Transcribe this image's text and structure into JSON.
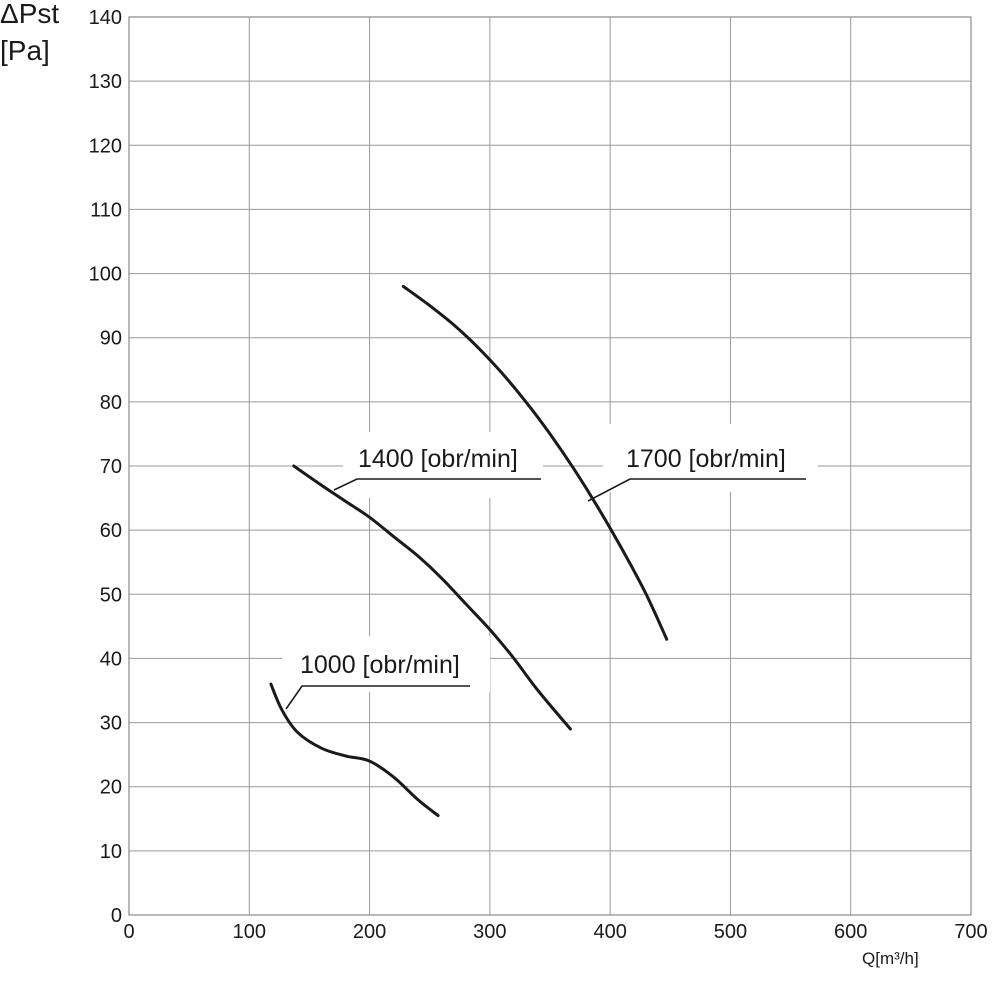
{
  "chart_data": {
    "type": "line",
    "title": "",
    "ylabel": [
      "ΔPst",
      "[Pa]"
    ],
    "xlabel": "Q[m³/h]",
    "xlim": [
      0,
      700
    ],
    "ylim": [
      0,
      140
    ],
    "x_ticks": [
      "0",
      "100",
      "200",
      "300",
      "400",
      "500",
      "600",
      "700"
    ],
    "y_ticks": [
      "0",
      "10",
      "20",
      "30",
      "40",
      "50",
      "60",
      "70",
      "80",
      "90",
      "100",
      "110",
      "120",
      "130",
      "140"
    ],
    "grid": true,
    "series": [
      {
        "name": "1000 [obr/min]",
        "x": [
          118,
          127,
          140,
          160,
          180,
          200,
          220,
          240,
          257
        ],
        "y": [
          36,
          32,
          28.5,
          26,
          24.8,
          24,
          21.5,
          18,
          15.5
        ]
      },
      {
        "name": "1400 [obr/min]",
        "x": [
          137,
          160,
          180,
          200,
          220,
          240,
          260,
          280,
          300,
          320,
          340,
          367
        ],
        "y": [
          70,
          67,
          64.5,
          62,
          59,
          56,
          52.5,
          48.5,
          44.5,
          40,
          35,
          29
        ]
      },
      {
        "name": "1700 [obr/min]",
        "x": [
          228,
          250,
          270,
          290,
          310,
          330,
          350,
          370,
          390,
          410,
          430,
          447
        ],
        "y": [
          98,
          95,
          92,
          88.5,
          84.5,
          80,
          75,
          69.5,
          63.5,
          57,
          50,
          43
        ]
      }
    ]
  }
}
